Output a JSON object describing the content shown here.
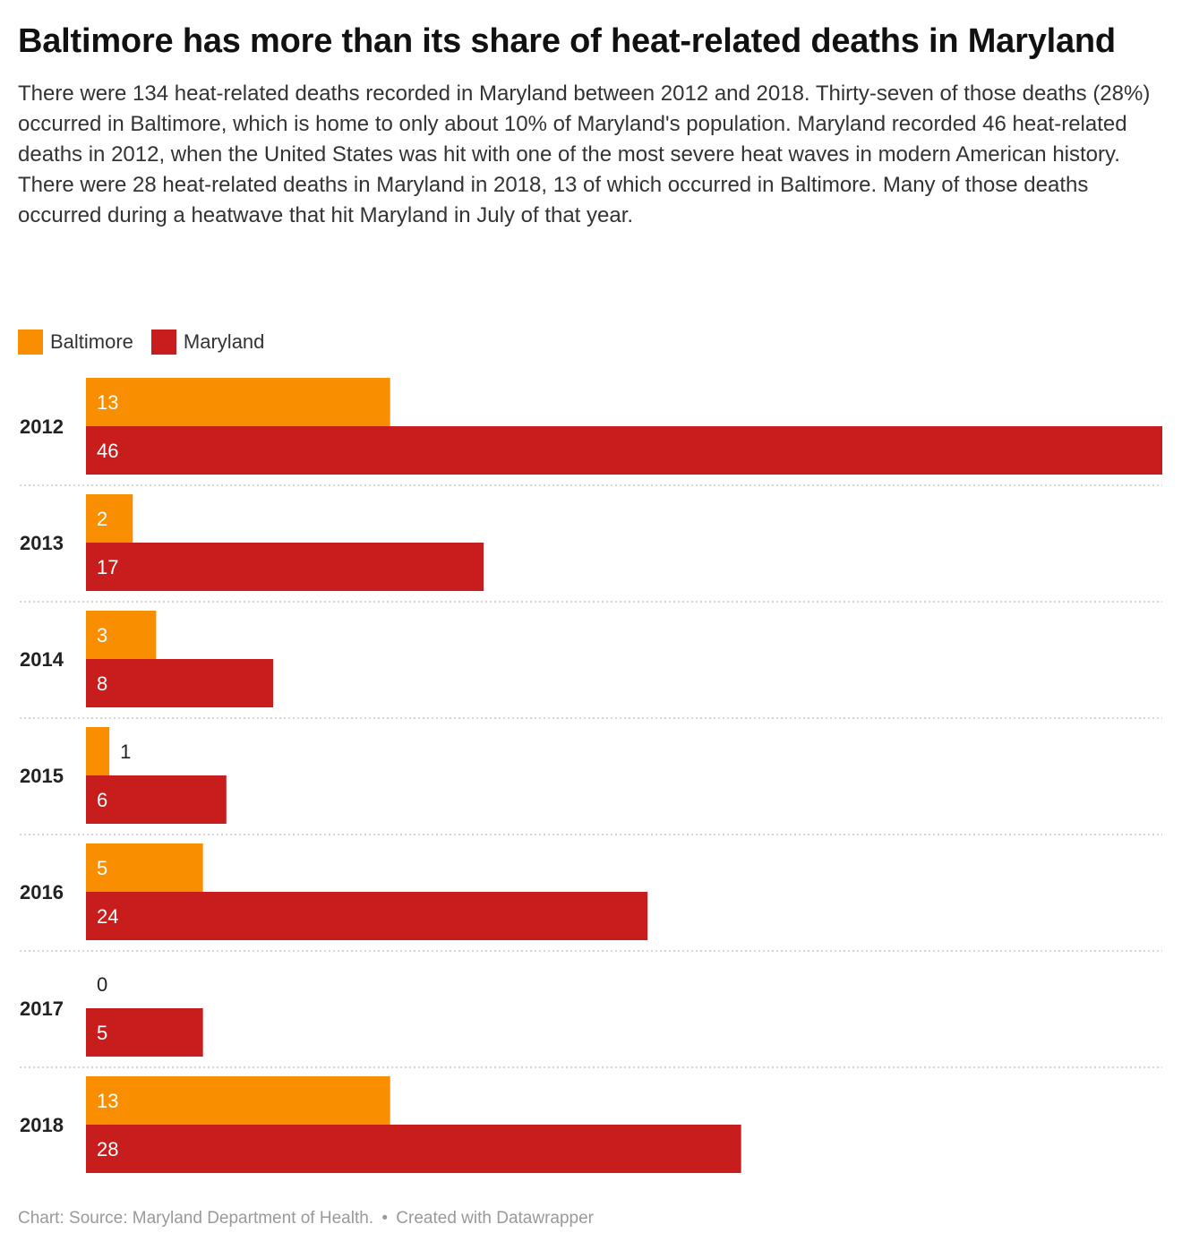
{
  "title": "Baltimore has more than its share of heat-related deaths in Maryland",
  "description": "There were 134 heat-related deaths recorded in Maryland between 2012 and 2018. Thirty-seven of those deaths (28%) occurred in Baltimore, which is home to only about 10% of Maryland's population. Maryland recorded 46 heat-related deaths in 2012, when the United States was hit with one of the most severe heat waves in modern American history. There were 28 heat-related deaths in Maryland in 2018, 13 of which occurred in Baltimore. Many of those deaths occurred during a heatwave that hit Maryland in July of that year.",
  "footer": {
    "chart_label": "Chart: Source: Maryland Department of Health.",
    "separator": "•",
    "credit": "Created with Datawrapper"
  },
  "chart_data": {
    "type": "bar",
    "orientation": "horizontal",
    "categories": [
      "2012",
      "2013",
      "2014",
      "2015",
      "2016",
      "2017",
      "2018"
    ],
    "series": [
      {
        "name": "Baltimore",
        "color": "#f88e00",
        "values": [
          13,
          2,
          3,
          1,
          5,
          0,
          13
        ]
      },
      {
        "name": "Maryland",
        "color": "#c71e1d",
        "values": [
          46,
          17,
          8,
          6,
          24,
          5,
          28
        ]
      }
    ],
    "xlim": [
      0,
      46
    ],
    "legend_position": "top-left",
    "grid": false,
    "row_separators": "dotted"
  }
}
